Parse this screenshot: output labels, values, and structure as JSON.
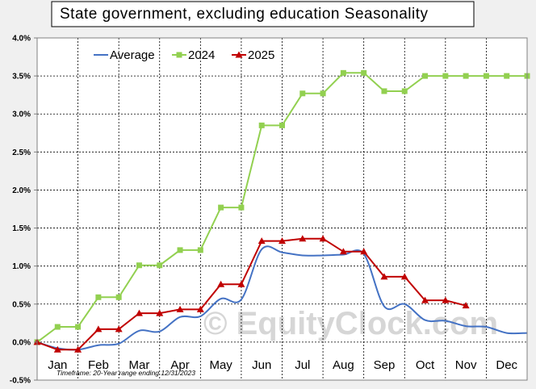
{
  "chart_data": {
    "type": "line",
    "title": "State government, excluding education Seasonality",
    "note": "Timeframe: 20-Year range ending 12/31/2023",
    "watermark": "© EquityClock.com",
    "xlabel": "",
    "ylabel": "",
    "ylim": [
      -0.5,
      4.0
    ],
    "yticks": [
      "-0.5%",
      "0.0%",
      "0.5%",
      "1.0%",
      "1.5%",
      "2.0%",
      "2.5%",
      "3.0%",
      "3.5%",
      "4.0%"
    ],
    "months": [
      "Jan",
      "Feb",
      "Mar",
      "Apr",
      "May",
      "Jun",
      "Jul",
      "Aug",
      "Sep",
      "Oct",
      "Nov",
      "Dec"
    ],
    "grid": true,
    "legend_placement": "top-left",
    "series": [
      {
        "name": "Average",
        "color": "#4472c4",
        "marker": "none",
        "points": [
          [
            0.0,
            0.0
          ],
          [
            0.5,
            -0.08
          ],
          [
            1.0,
            -0.1
          ],
          [
            1.5,
            -0.04
          ],
          [
            2.0,
            -0.02
          ],
          [
            2.5,
            0.15
          ],
          [
            3.0,
            0.14
          ],
          [
            3.5,
            0.33
          ],
          [
            4.0,
            0.34
          ],
          [
            4.5,
            0.57
          ],
          [
            5.0,
            0.56
          ],
          [
            5.5,
            1.22
          ],
          [
            6.0,
            1.18
          ],
          [
            6.5,
            1.14
          ],
          [
            7.0,
            1.14
          ],
          [
            7.5,
            1.15
          ],
          [
            8.0,
            1.16
          ],
          [
            8.5,
            0.47
          ],
          [
            9.0,
            0.5
          ],
          [
            9.5,
            0.29
          ],
          [
            10.0,
            0.28
          ],
          [
            10.5,
            0.21
          ],
          [
            11.0,
            0.2
          ],
          [
            11.5,
            0.12
          ],
          [
            12.0,
            0.12
          ]
        ]
      },
      {
        "name": "2024",
        "color": "#92d050",
        "marker": "square",
        "points": [
          [
            0.0,
            0.0
          ],
          [
            0.5,
            0.2
          ],
          [
            1.0,
            0.2
          ],
          [
            1.5,
            0.59
          ],
          [
            2.0,
            0.59
          ],
          [
            2.5,
            1.01
          ],
          [
            3.0,
            1.01
          ],
          [
            3.5,
            1.21
          ],
          [
            4.0,
            1.21
          ],
          [
            4.5,
            1.77
          ],
          [
            5.0,
            1.77
          ],
          [
            5.5,
            2.85
          ],
          [
            6.0,
            2.85
          ],
          [
            6.5,
            3.27
          ],
          [
            7.0,
            3.27
          ],
          [
            7.5,
            3.54
          ],
          [
            8.0,
            3.54
          ],
          [
            8.5,
            3.3
          ],
          [
            9.0,
            3.3
          ],
          [
            9.5,
            3.5
          ],
          [
            10.0,
            3.5
          ],
          [
            10.5,
            3.5
          ],
          [
            11.0,
            3.5
          ],
          [
            11.5,
            3.5
          ],
          [
            12.0,
            3.5
          ]
        ]
      },
      {
        "name": "2025",
        "color": "#c00000",
        "marker": "triangle",
        "points": [
          [
            0.0,
            0.0
          ],
          [
            0.5,
            -0.1
          ],
          [
            1.0,
            -0.1
          ],
          [
            1.5,
            0.17
          ],
          [
            2.0,
            0.17
          ],
          [
            2.5,
            0.38
          ],
          [
            3.0,
            0.38
          ],
          [
            3.5,
            0.43
          ],
          [
            4.0,
            0.43
          ],
          [
            4.5,
            0.76
          ],
          [
            5.0,
            0.76
          ],
          [
            5.5,
            1.33
          ],
          [
            6.0,
            1.33
          ],
          [
            6.5,
            1.36
          ],
          [
            7.0,
            1.36
          ],
          [
            7.5,
            1.19
          ],
          [
            8.0,
            1.19
          ],
          [
            8.5,
            0.86
          ],
          [
            9.0,
            0.86
          ],
          [
            9.5,
            0.55
          ],
          [
            10.0,
            0.55
          ],
          [
            10.5,
            0.48
          ]
        ]
      }
    ]
  }
}
